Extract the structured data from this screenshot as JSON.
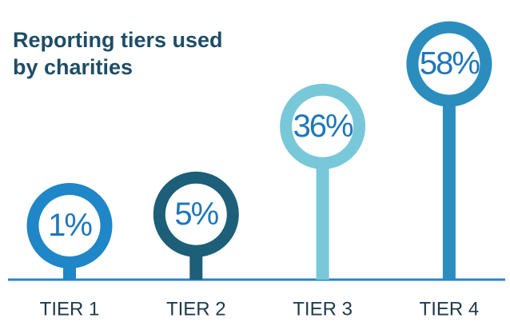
{
  "chart_data": {
    "type": "lollipop",
    "title": "Reporting tiers used by charities",
    "categories": [
      "TIER 1",
      "TIER 2",
      "TIER 3",
      "TIER 4"
    ],
    "values": [
      1,
      5,
      36,
      58
    ],
    "value_labels": [
      "1%",
      "5%",
      "36%",
      "58%"
    ],
    "colors": [
      "#1f86c8",
      "#1d5e79",
      "#78c8da",
      "#2b8dbd"
    ],
    "label_color": "#1f76bb",
    "baseline_color": "#2a86c0"
  }
}
